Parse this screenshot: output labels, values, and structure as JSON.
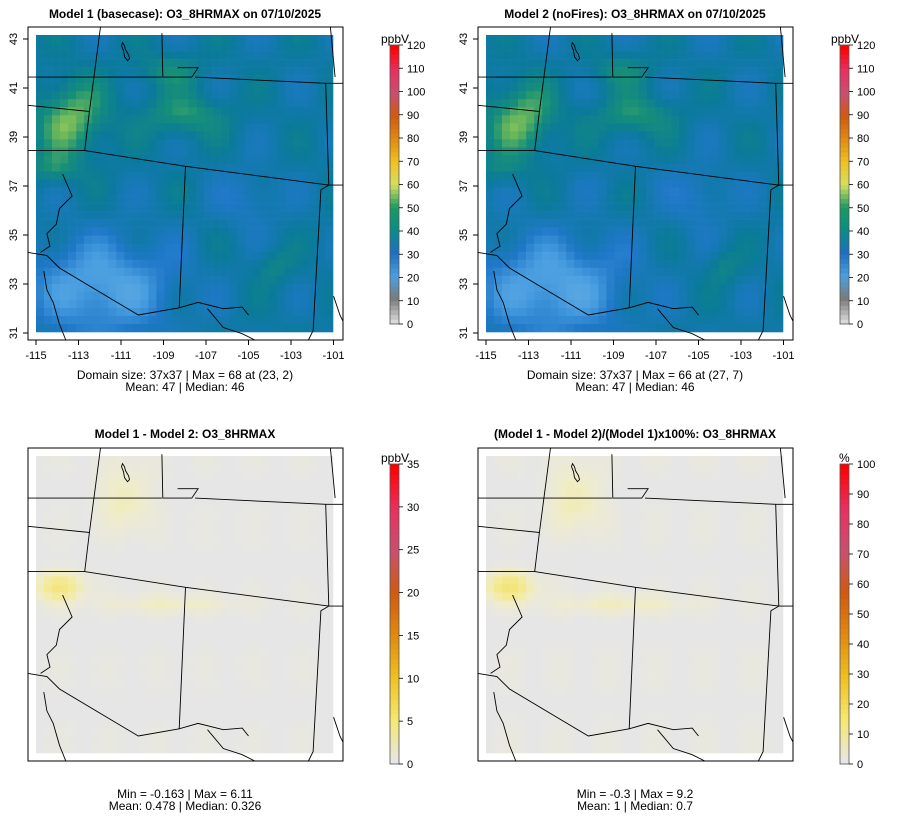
{
  "panels": [
    {
      "id": "p1",
      "title": "Model 1 (basecase): O3_8HRMAX on 07/10/2025",
      "unit": "ppbV",
      "legend_ticks": [
        "0",
        "10",
        "20",
        "30",
        "40",
        "50",
        "60",
        "70",
        "80",
        "90",
        "100",
        "110",
        "120"
      ],
      "stats_line1": "Domain size: 37x37 | Max = 68 at (23, 2)",
      "stats_line2": "Mean: 47 |  Median: 46",
      "axes": true
    },
    {
      "id": "p2",
      "title": "Model 2 (noFires): O3_8HRMAX on 07/10/2025",
      "unit": "ppbV",
      "legend_ticks": [
        "0",
        "10",
        "20",
        "30",
        "40",
        "50",
        "60",
        "70",
        "80",
        "90",
        "100",
        "110",
        "120"
      ],
      "stats_line1": "Domain size: 37x37 | Max = 66 at (27, 7)",
      "stats_line2": "Mean: 47 |  Median: 46",
      "axes": true
    },
    {
      "id": "p3",
      "title": "Model 1 - Model 2: O3_8HRMAX",
      "unit": "ppbV",
      "legend_ticks": [
        "0",
        "5",
        "10",
        "15",
        "20",
        "25",
        "30",
        "35"
      ],
      "stats_line1": "Min = -0.163 | Max = 6.11",
      "stats_line2": "Mean: 0.478 |  Median: 0.326",
      "axes": false
    },
    {
      "id": "p4",
      "title": "(Model 1 - Model 2)/(Model 1)x100%: O3_8HRMAX",
      "unit": "%",
      "legend_ticks": [
        "0",
        "10",
        "20",
        "30",
        "40",
        "50",
        "60",
        "70",
        "80",
        "90",
        "100"
      ],
      "stats_line1": "Min = -0.3 | Max = 9.2",
      "stats_line2": "Mean: 1 |  Median: 0.7",
      "axes": false
    }
  ],
  "x_tick_labels": [
    "-115",
    "-113",
    "-111",
    "-109",
    "-107",
    "-105",
    "-103",
    "-101"
  ],
  "y_tick_labels": [
    "31",
    "33",
    "35",
    "37",
    "39",
    "41",
    "43"
  ],
  "colors": {
    "abs_scale": [
      "#d9d9d9",
      "#7a7a7a",
      "#4a9fe0",
      "#1f6fc0",
      "#0a8c88",
      "#1a9a60",
      "#d4e060",
      "#f0c020",
      "#e08a10",
      "#d05a10",
      "#c85070",
      "#e83060",
      "#ff0000"
    ],
    "diff_scale": [
      "#e6e6e6",
      "#f5e870",
      "#f0c020",
      "#e08a10",
      "#d05a10",
      "#c85070",
      "#e83060",
      "#ff0000"
    ]
  }
}
